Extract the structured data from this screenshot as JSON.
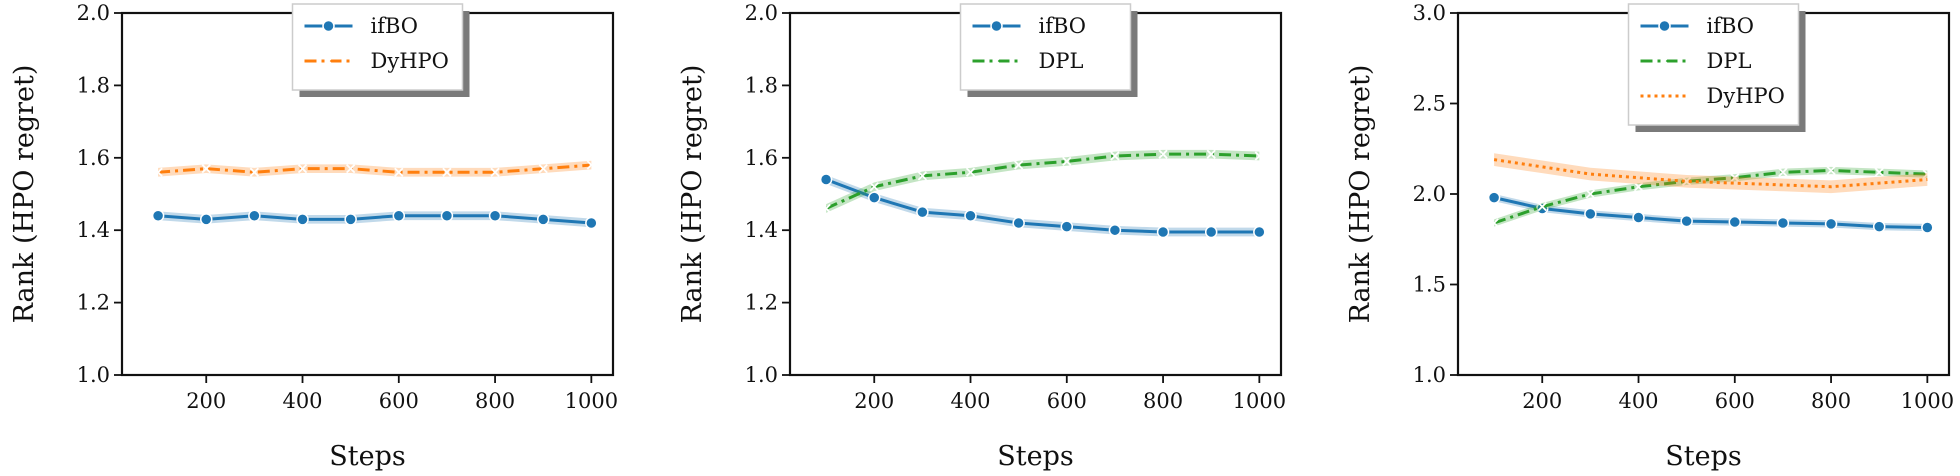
{
  "chart_data": [
    {
      "type": "line",
      "title": "",
      "xlabel": "Steps",
      "ylabel": "Rank (HPO regret)",
      "xlim": [
        25,
        1045
      ],
      "ylim": [
        1.0,
        2.0
      ],
      "xticks": [
        200,
        400,
        600,
        800,
        1000
      ],
      "yticks": [
        1.0,
        1.2,
        1.4,
        1.6,
        1.8,
        2.0
      ],
      "ytick_labels": [
        "1.0",
        "1.2",
        "1.4",
        "1.6",
        "1.8",
        "2.0"
      ],
      "legend_position": "top-center",
      "grid": false,
      "x": [
        100,
        200,
        300,
        400,
        500,
        600,
        700,
        800,
        900,
        1000
      ],
      "series": [
        {
          "name": "ifBO",
          "color": "#1f77b4",
          "marker": "circle",
          "dash": "solid",
          "values": [
            1.44,
            1.43,
            1.44,
            1.43,
            1.43,
            1.44,
            1.44,
            1.44,
            1.43,
            1.42
          ],
          "band": 0.012
        },
        {
          "name": "DyHPO",
          "color": "#ff7f0e",
          "marker": "x",
          "dash": "dashdot",
          "values": [
            1.56,
            1.57,
            1.56,
            1.57,
            1.57,
            1.56,
            1.56,
            1.56,
            1.57,
            1.58
          ],
          "band": 0.012
        }
      ]
    },
    {
      "type": "line",
      "title": "",
      "xlabel": "Steps",
      "ylabel": "Rank (HPO regret)",
      "xlim": [
        25,
        1045
      ],
      "ylim": [
        1.0,
        2.0
      ],
      "xticks": [
        200,
        400,
        600,
        800,
        1000
      ],
      "yticks": [
        1.0,
        1.2,
        1.4,
        1.6,
        1.8,
        2.0
      ],
      "ytick_labels": [
        "1.0",
        "1.2",
        "1.4",
        "1.6",
        "1.8",
        "2.0"
      ],
      "legend_position": "top-center",
      "grid": false,
      "x": [
        100,
        200,
        300,
        400,
        500,
        600,
        700,
        800,
        900,
        1000
      ],
      "series": [
        {
          "name": "ifBO",
          "color": "#1f77b4",
          "marker": "circle",
          "dash": "solid",
          "values": [
            1.54,
            1.49,
            1.45,
            1.44,
            1.42,
            1.41,
            1.4,
            1.395,
            1.395,
            1.395
          ],
          "band": 0.012
        },
        {
          "name": "DPL",
          "color": "#2ca02c",
          "marker": "x",
          "dash": "dashdot",
          "values": [
            1.46,
            1.52,
            1.55,
            1.56,
            1.58,
            1.59,
            1.605,
            1.61,
            1.61,
            1.605
          ],
          "band": 0.012
        }
      ]
    },
    {
      "type": "line",
      "title": "",
      "xlabel": "Steps",
      "ylabel": "Rank (HPO regret)",
      "xlim": [
        25,
        1045
      ],
      "ylim": [
        1.0,
        3.0
      ],
      "xticks": [
        200,
        400,
        600,
        800,
        1000
      ],
      "yticks": [
        1.0,
        1.5,
        2.0,
        2.5,
        3.0
      ],
      "ytick_labels": [
        "1.0",
        "1.5",
        "2.0",
        "2.5",
        "3.0"
      ],
      "legend_position": "top-center",
      "grid": false,
      "x": [
        100,
        200,
        300,
        400,
        500,
        600,
        700,
        800,
        900,
        1000
      ],
      "series": [
        {
          "name": "ifBO",
          "color": "#1f77b4",
          "marker": "circle",
          "dash": "solid",
          "values": [
            1.98,
            1.92,
            1.89,
            1.87,
            1.85,
            1.845,
            1.84,
            1.835,
            1.82,
            1.815
          ],
          "band": 0.02
        },
        {
          "name": "DPL",
          "color": "#2ca02c",
          "marker": "x",
          "dash": "dashdot",
          "values": [
            1.84,
            1.93,
            2.0,
            2.04,
            2.07,
            2.09,
            2.12,
            2.13,
            2.12,
            2.11
          ],
          "band": 0.02
        },
        {
          "name": "DyHPO",
          "color": "#ff7f0e",
          "marker": "none",
          "dash": "dotted",
          "values": [
            2.19,
            2.15,
            2.11,
            2.09,
            2.07,
            2.06,
            2.05,
            2.04,
            2.06,
            2.08
          ],
          "band": 0.035
        }
      ]
    }
  ]
}
